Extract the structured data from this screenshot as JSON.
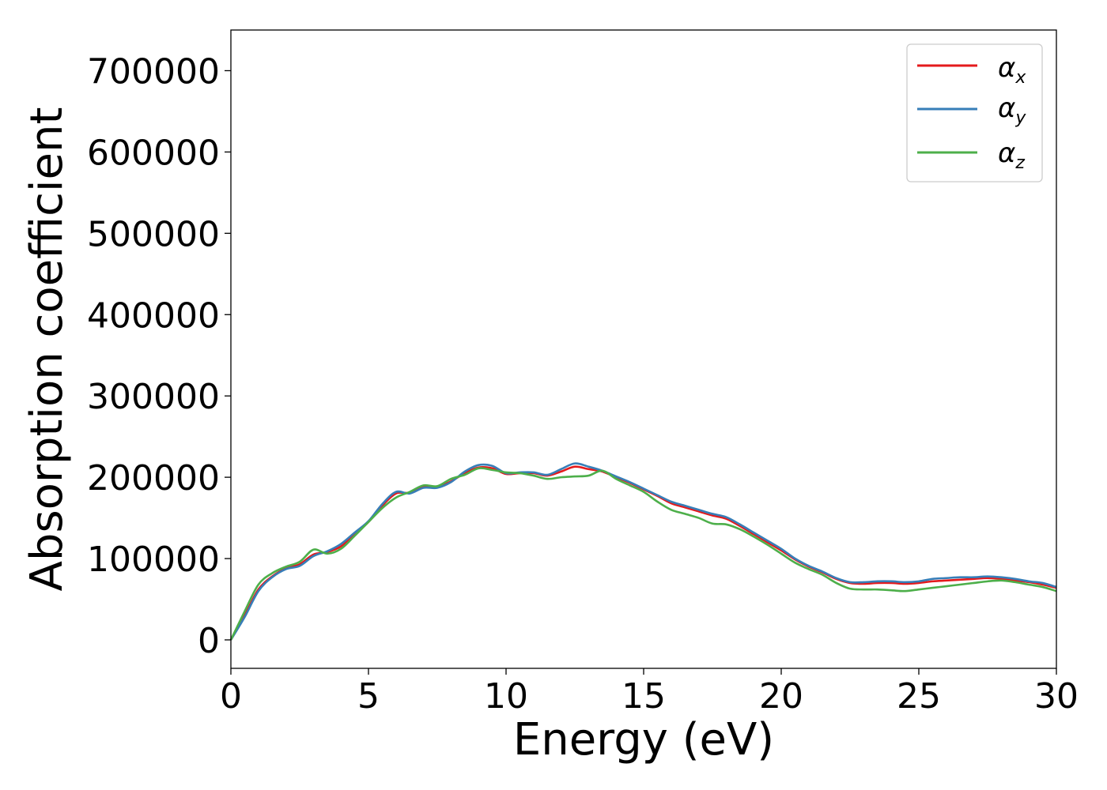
{
  "chart_data": {
    "type": "line",
    "title": "",
    "xlabel": "Energy (eV)",
    "ylabel": "Absorption coefficient",
    "xlim": [
      0,
      30
    ],
    "ylim": [
      -35000,
      750000
    ],
    "xticks": [
      0,
      5,
      10,
      15,
      20,
      25,
      30
    ],
    "yticks": [
      0,
      100000,
      200000,
      300000,
      400000,
      500000,
      600000,
      700000
    ],
    "grid": false,
    "legend_position": "top-right",
    "series": [
      {
        "name": "α",
        "subscript": "x",
        "color": "#e41a1c",
        "x": [
          0,
          0.5,
          1,
          1.5,
          2,
          2.5,
          3,
          3.5,
          4,
          4.5,
          5,
          5.5,
          6,
          6.5,
          7,
          7.5,
          8,
          8.5,
          9,
          9.5,
          10,
          10.5,
          11,
          11.5,
          12,
          12.5,
          13,
          13.5,
          14,
          14.5,
          15,
          15.5,
          16,
          16.5,
          17,
          17.5,
          18,
          18.5,
          19,
          19.5,
          20,
          20.5,
          21,
          21.5,
          22,
          22.5,
          23,
          23.5,
          24,
          24.5,
          25,
          25.5,
          26,
          26.5,
          27,
          27.5,
          28,
          28.5,
          29,
          29.5,
          30
        ],
        "y": [
          0,
          30000,
          62000,
          78000,
          88000,
          93000,
          105000,
          108000,
          115000,
          130000,
          145000,
          165000,
          180000,
          181000,
          188000,
          188000,
          195000,
          205000,
          212000,
          211000,
          204000,
          205000,
          205000,
          202000,
          207000,
          213000,
          210000,
          207000,
          200000,
          193000,
          185000,
          177000,
          168000,
          163000,
          158000,
          153000,
          149000,
          140000,
          130000,
          120000,
          110000,
          99000,
          90000,
          83000,
          75000,
          70000,
          69000,
          70000,
          70000,
          69000,
          70000,
          72000,
          73000,
          74000,
          75000,
          76000,
          75000,
          73000,
          71000,
          68000,
          64000
        ]
      },
      {
        "name": "α",
        "subscript": "y",
        "color": "#377eb8",
        "x": [
          0,
          0.5,
          1,
          1.5,
          2,
          2.5,
          3,
          3.5,
          4,
          4.5,
          5,
          5.5,
          6,
          6.5,
          7,
          7.5,
          8,
          8.5,
          9,
          9.5,
          10,
          10.5,
          11,
          11.5,
          12,
          12.5,
          13,
          13.5,
          14,
          14.5,
          15,
          15.5,
          16,
          16.5,
          17,
          17.5,
          18,
          18.5,
          19,
          19.5,
          20,
          20.5,
          21,
          21.5,
          22,
          22.5,
          23,
          23.5,
          24,
          24.5,
          25,
          25.5,
          26,
          26.5,
          27,
          27.5,
          28,
          28.5,
          29,
          29.5,
          30
        ],
        "y": [
          0,
          28000,
          60000,
          77000,
          87000,
          91000,
          103000,
          109000,
          118000,
          132000,
          146000,
          167000,
          182000,
          180000,
          187000,
          187000,
          194000,
          207000,
          215000,
          214000,
          205000,
          206000,
          206000,
          203000,
          210000,
          217000,
          213000,
          208000,
          201000,
          194000,
          186000,
          178000,
          170000,
          165000,
          160000,
          155000,
          151000,
          142000,
          132000,
          122000,
          112000,
          100000,
          91000,
          84000,
          76000,
          71000,
          71000,
          72000,
          72000,
          71000,
          72000,
          75000,
          76000,
          77000,
          77000,
          78000,
          77000,
          75000,
          72000,
          70000,
          65000
        ]
      },
      {
        "name": "α",
        "subscript": "z",
        "color": "#4daf4a",
        "x": [
          0,
          0.5,
          1,
          1.5,
          2,
          2.5,
          3,
          3.5,
          4,
          4.5,
          5,
          5.5,
          6,
          6.5,
          7,
          7.5,
          8,
          8.5,
          9,
          9.5,
          10,
          10.5,
          11,
          11.5,
          12,
          12.5,
          13,
          13.5,
          14,
          14.5,
          15,
          15.5,
          16,
          16.5,
          17,
          17.5,
          18,
          18.5,
          19,
          19.5,
          20,
          20.5,
          21,
          21.5,
          22,
          22.5,
          23,
          23.5,
          24,
          24.5,
          25,
          25.5,
          26,
          26.5,
          27,
          27.5,
          28,
          28.5,
          29,
          29.5,
          30
        ],
        "y": [
          0,
          35000,
          68000,
          82000,
          90000,
          96000,
          111000,
          106000,
          112000,
          128000,
          145000,
          162000,
          175000,
          182000,
          190000,
          189000,
          198000,
          203000,
          211000,
          209000,
          206000,
          205000,
          202000,
          198000,
          200000,
          201000,
          202000,
          208000,
          198000,
          190000,
          182000,
          170000,
          160000,
          155000,
          150000,
          143000,
          142000,
          136000,
          127000,
          117000,
          106000,
          95000,
          87000,
          80000,
          70000,
          63000,
          62000,
          62000,
          61000,
          60000,
          62000,
          64000,
          66000,
          68000,
          70000,
          72000,
          73000,
          71000,
          68000,
          65000,
          60000
        ]
      }
    ]
  }
}
